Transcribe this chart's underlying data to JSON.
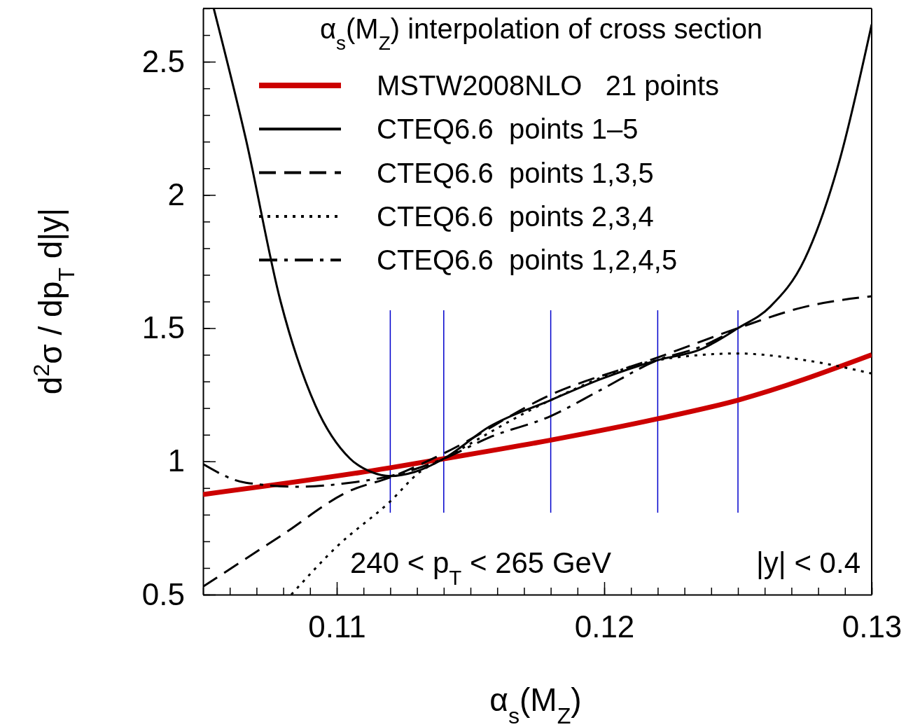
{
  "chart_data": {
    "type": "line",
    "legend_title": "α$_{s}$(M$_{Z}$) interpolation of cross section",
    "xlabel": "α$_{s}$(M$_{Z}$)",
    "ylabel": "d$^{2}$σ / dp$_{T}$ d|y|",
    "legend": "top",
    "marker": "none",
    "grid": false,
    "xlim": [
      0.105,
      0.13
    ],
    "ylim": [
      0.5,
      2.7
    ],
    "xticks": [
      0.11,
      0.12,
      0.13
    ],
    "yticks": [
      0.5,
      1,
      1.5,
      2,
      2.5
    ],
    "series": [
      {
        "name": "MSTW2008NLO   21 points",
        "color": "#cc0000",
        "line_style": "solid",
        "x": [
          0.105,
          0.112,
          0.114,
          0.118,
          0.122,
          0.125,
          0.13
        ],
        "values": [
          0.876,
          0.976,
          1.01,
          1.08,
          1.16,
          1.23,
          1.4
        ]
      },
      {
        "name": "CTEQ6.6  points 1–5",
        "color": "#000000",
        "line_style": "solid",
        "x": [
          0.1054,
          0.1066,
          0.1079,
          0.1092,
          0.1105,
          0.1113,
          0.112,
          0.1129,
          0.114,
          0.1157,
          0.118,
          0.1199,
          0.122,
          0.1236,
          0.125,
          0.1262,
          0.1275,
          0.1288,
          0.13
        ],
        "values": [
          2.7,
          2.21,
          1.6,
          1.21,
          1.01,
          0.96,
          0.945,
          0.96,
          1.01,
          1.13,
          1.23,
          1.31,
          1.38,
          1.42,
          1.5,
          1.58,
          1.76,
          2.13,
          2.64
        ]
      },
      {
        "name": "CTEQ6.6  points 1,3,5",
        "color": "#000000",
        "line_style": "dashed",
        "x": [
          0.105,
          0.1079,
          0.1105,
          0.112,
          0.114,
          0.118,
          0.122,
          0.125,
          0.1275,
          0.13
        ],
        "values": [
          0.53,
          0.72,
          0.89,
          0.94,
          1.03,
          1.25,
          1.39,
          1.5,
          1.58,
          1.62
        ]
      },
      {
        "name": "CTEQ6.6  points 2,3,4",
        "color": "#000000",
        "line_style": "dotted",
        "x": [
          0.1083,
          0.11,
          0.112,
          0.1131,
          0.114,
          0.118,
          0.122,
          0.125,
          0.1275,
          0.13
        ],
        "values": [
          0.5,
          0.68,
          0.85,
          0.96,
          1.01,
          1.23,
          1.38,
          1.405,
          1.38,
          1.33
        ]
      },
      {
        "name": "CTEQ6.6  points 1,2,4,5",
        "color": "#000000",
        "line_style": "dashdot",
        "x": [
          0.105,
          0.1066,
          0.1086,
          0.1105,
          0.112,
          0.114,
          0.1157,
          0.118,
          0.1199,
          0.122,
          0.1236,
          0.125
        ],
        "values": [
          0.99,
          0.92,
          0.905,
          0.92,
          0.945,
          1.01,
          1.09,
          1.17,
          1.27,
          1.38,
          1.43,
          1.5
        ]
      }
    ],
    "ref_lines": [
      {
        "axis": "x",
        "value": 0.112,
        "color": "#0000cc"
      },
      {
        "axis": "x",
        "value": 0.114,
        "color": "#0000cc"
      },
      {
        "axis": "x",
        "value": 0.118,
        "color": "#0000cc"
      },
      {
        "axis": "x",
        "value": 0.122,
        "color": "#0000cc"
      },
      {
        "axis": "x",
        "value": 0.125,
        "color": "#0000cc"
      }
    ],
    "annotations": [
      "240 < p$_{T}$ < 265 GeV",
      "|y| < 0.4"
    ]
  }
}
